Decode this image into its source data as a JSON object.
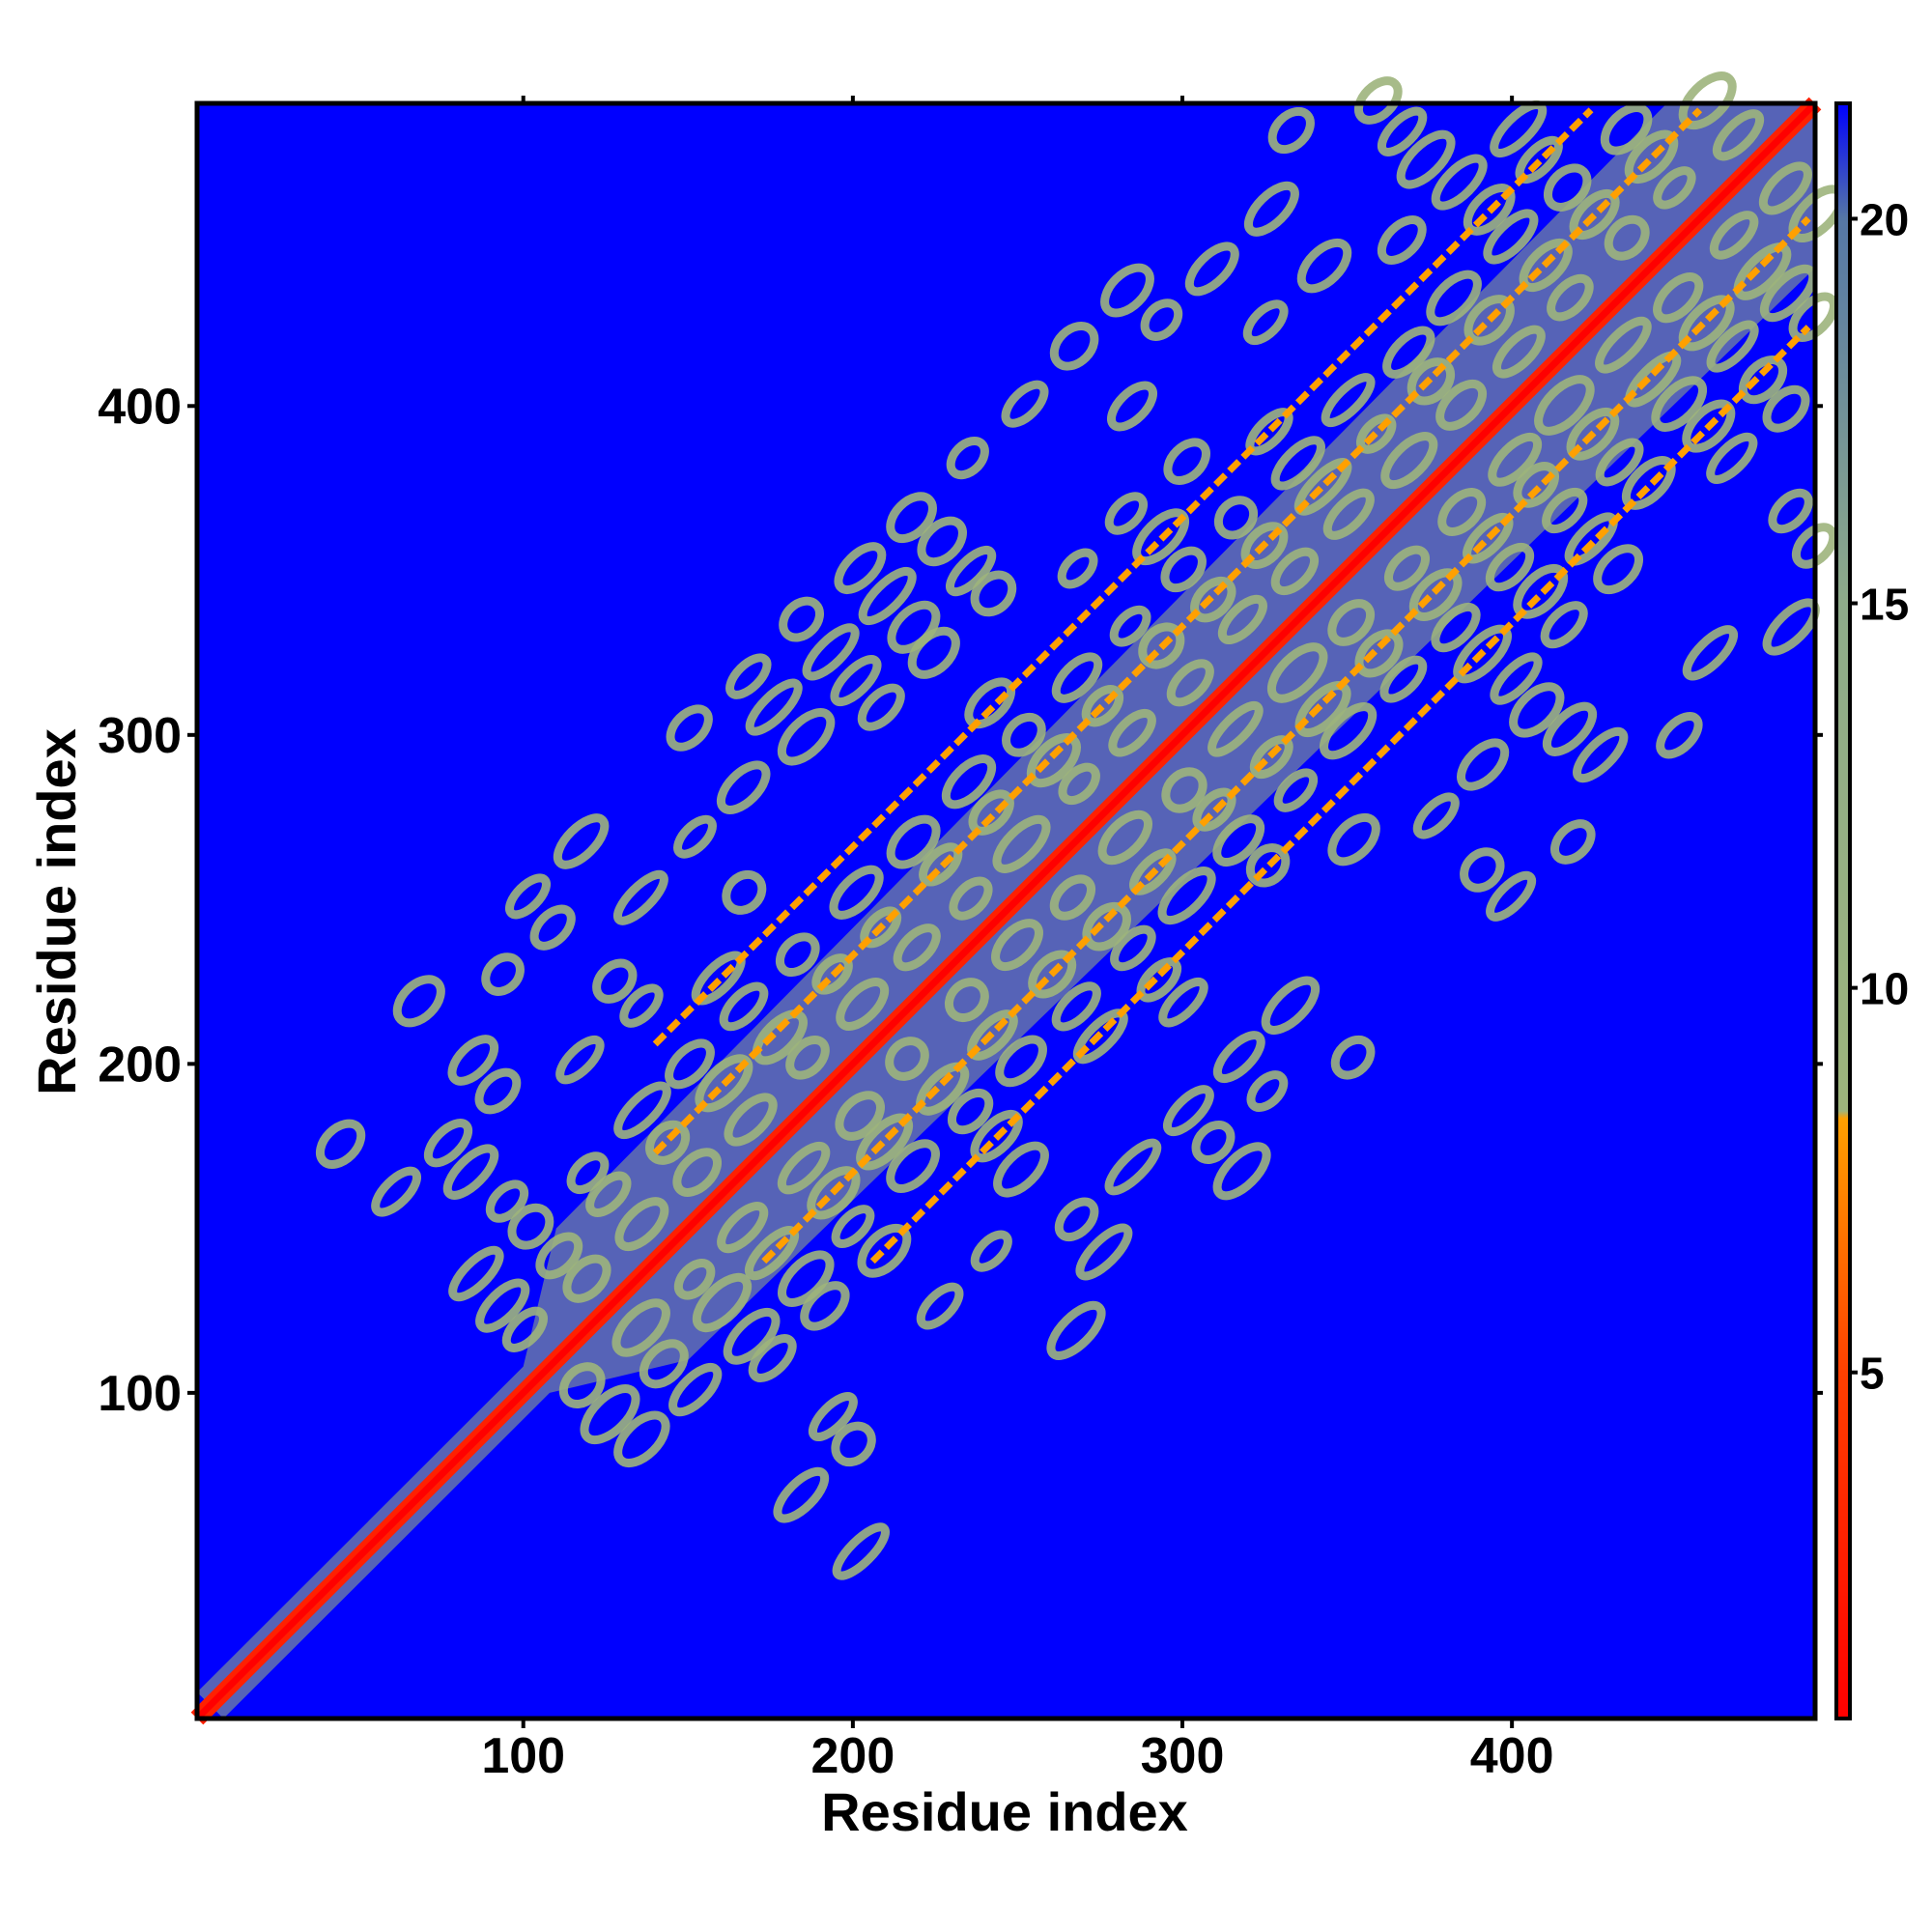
{
  "chart_data": {
    "type": "heatmap",
    "title": "",
    "xlabel": "Residue index",
    "ylabel": "Residue index",
    "xlim": [
      1,
      492
    ],
    "ylim": [
      1,
      492
    ],
    "x_ticks": [
      100,
      200,
      300,
      400
    ],
    "y_ticks": [
      100,
      200,
      300,
      400
    ],
    "x_tick_labels": [
      "100",
      "200",
      "300",
      "400"
    ],
    "y_tick_labels": [
      "100",
      "200",
      "300",
      "400"
    ],
    "grid": false,
    "colorbar": {
      "placement": "right",
      "range": [
        0.5,
        21.5
      ],
      "ticks": [
        5,
        10,
        15,
        20
      ],
      "tick_labels": [
        "5",
        "10",
        "15",
        "20"
      ],
      "colors": [
        {
          "value": 0.5,
          "color": "#ff0000"
        },
        {
          "value": 5,
          "color": "#ff4000"
        },
        {
          "value": 8.3,
          "color": "#ffa000"
        },
        {
          "value": 8.4,
          "color": "#9db47c"
        },
        {
          "value": 15,
          "color": "#8eab8a"
        },
        {
          "value": 20,
          "color": "#5577a6"
        },
        {
          "value": 21.5,
          "color": "#0000ff"
        }
      ]
    },
    "background_value": 21,
    "background_color": "#0000ff",
    "description_values": {
      "diagonal_value": 1,
      "helix_offsets": [
        33,
        66
      ],
      "helix_region_start": 110,
      "band_offsets": [
        0,
        16,
        33,
        50,
        66,
        83,
        100,
        116,
        133,
        150
      ],
      "band_value": 10
    }
  }
}
